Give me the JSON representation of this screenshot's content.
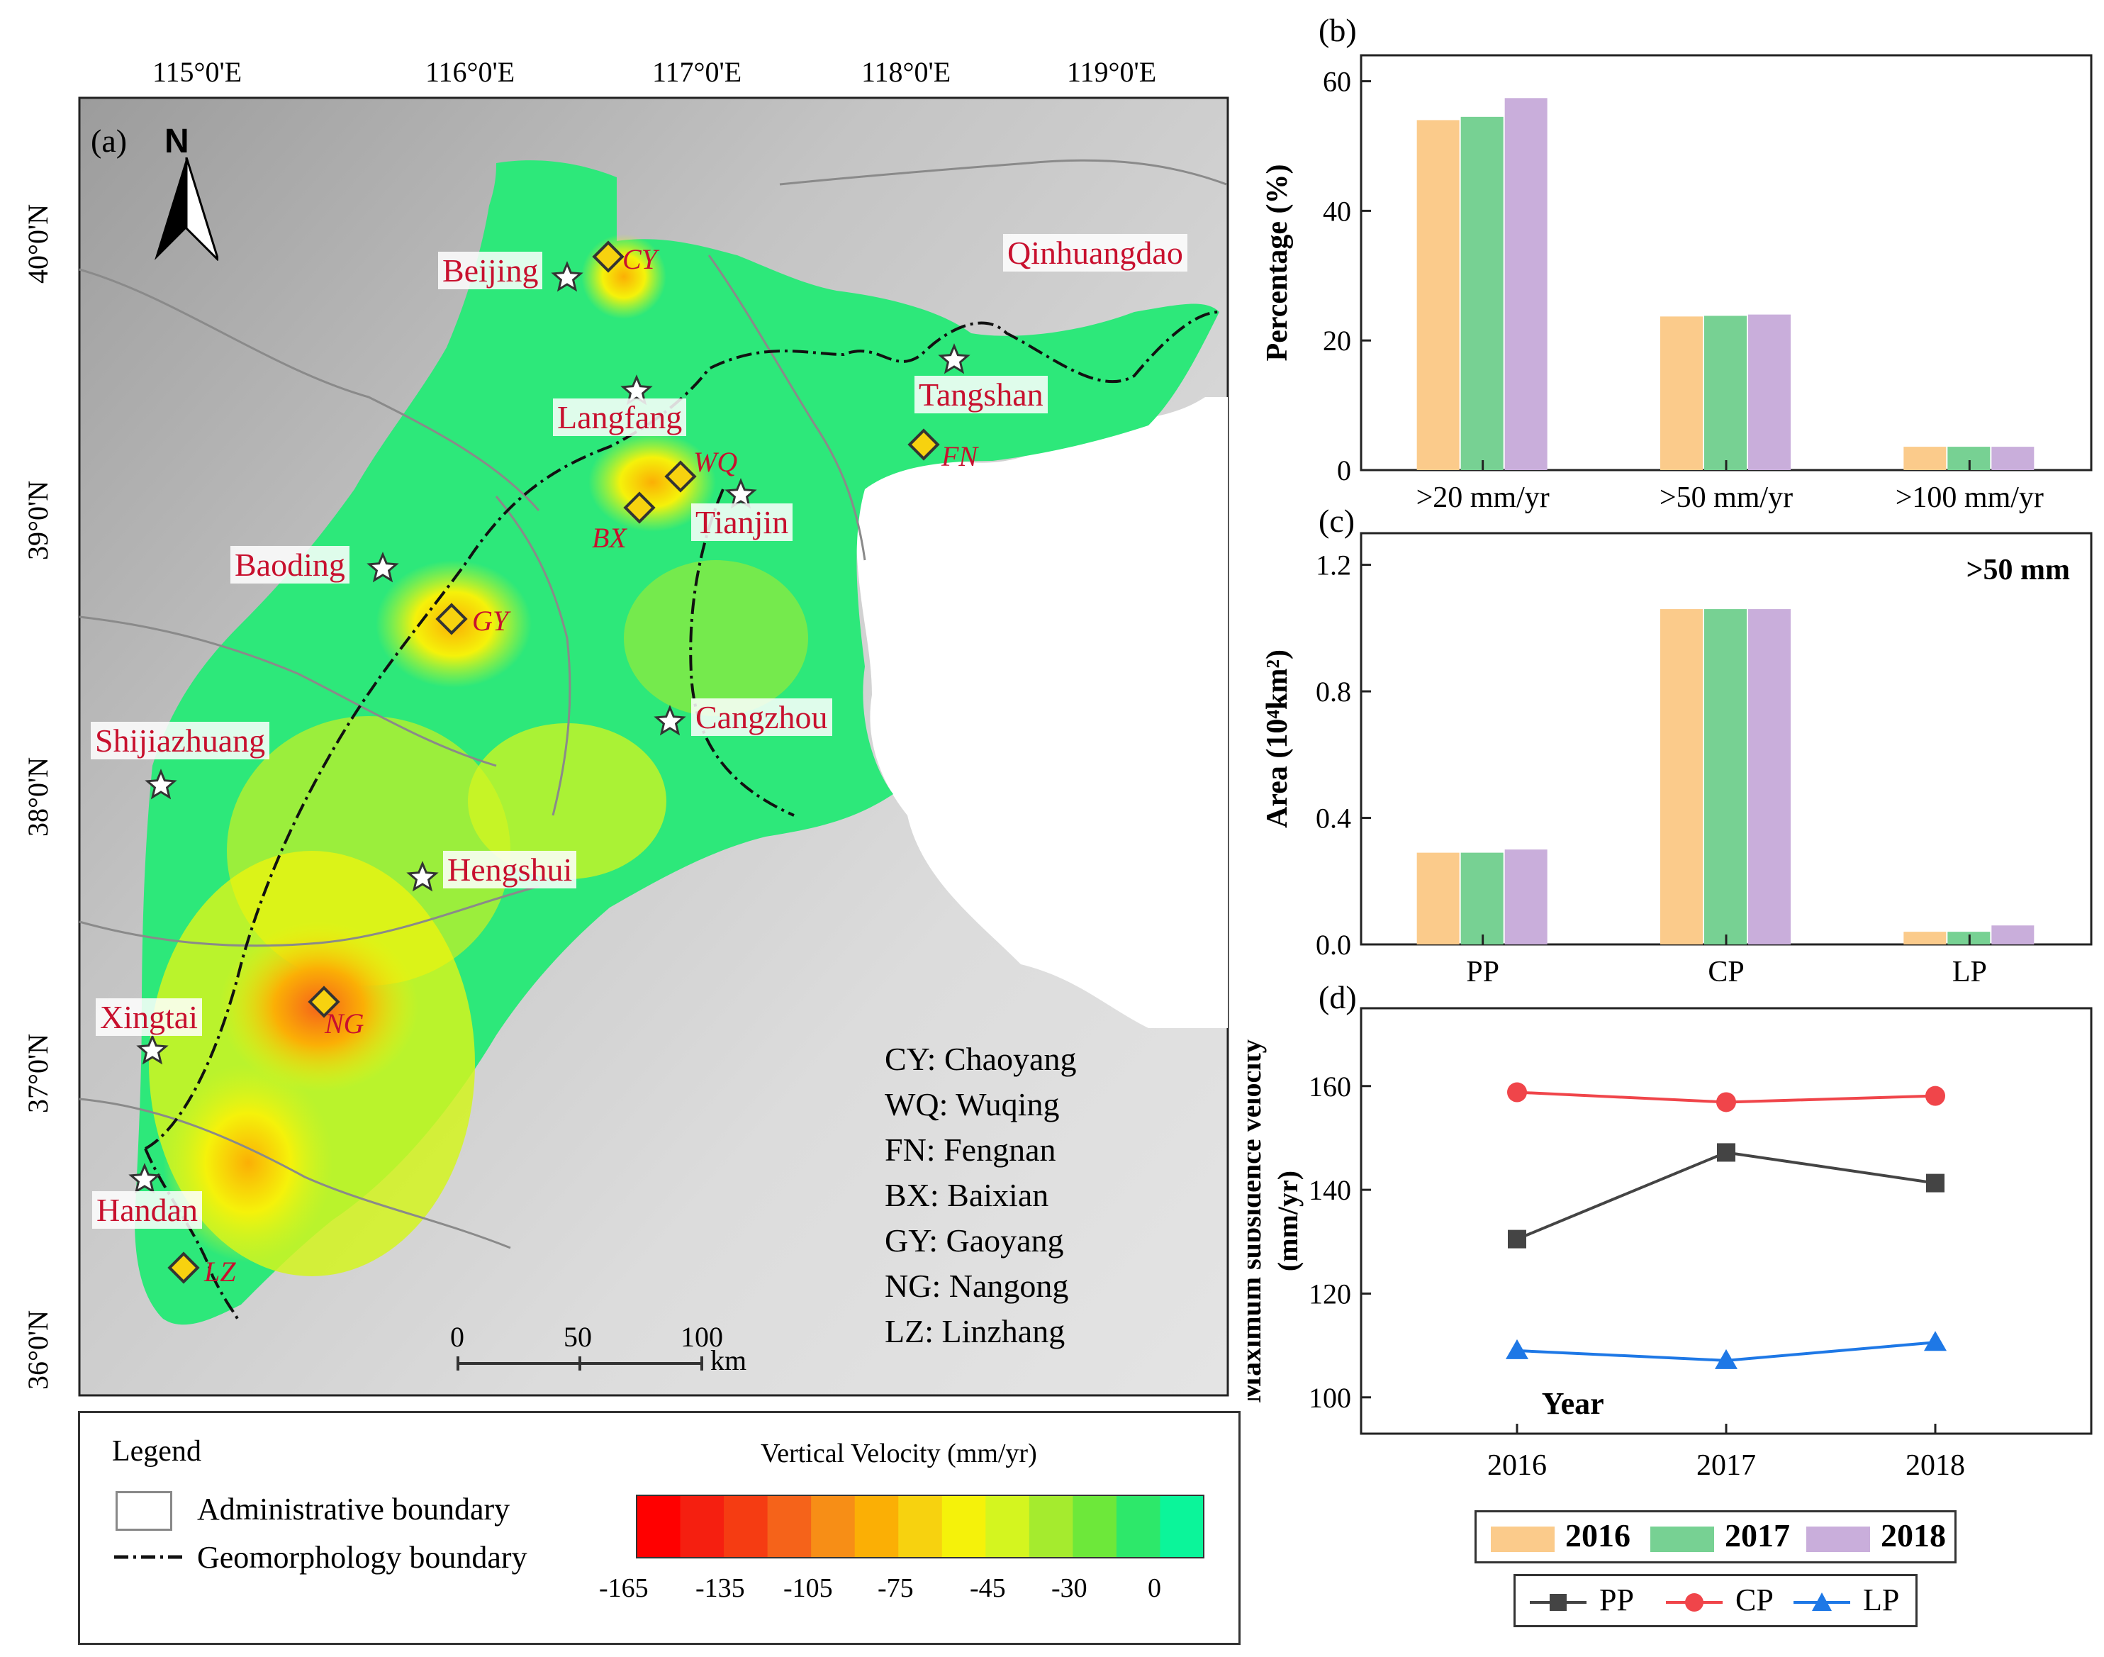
{
  "colors": {
    "c2016": "#FBCB8B",
    "c2017": "#77D193",
    "c2018": "#C9AEDB",
    "pp": "#444444",
    "cp": "#F0454A",
    "lp": "#1E78E6",
    "city": "#C8102E",
    "velocity_scale": [
      "#FF0000",
      "#F51F10",
      "#F53C12",
      "#F5631A",
      "#F78E16",
      "#FBAF05",
      "#F7D20F",
      "#F5F20A",
      "#D4F51F",
      "#A5EB2E",
      "#6DE83A",
      "#2DE86A",
      "#0BF59A"
    ]
  },
  "map": {
    "panel_label": "(a)",
    "north_label": "N",
    "lon_ticks": [
      "115°0'E",
      "116°0'E",
      "117°0'E",
      "118°0'E",
      "119°0'E"
    ],
    "lat_ticks": [
      "40°0'N",
      "39°0'N",
      "38°0'N",
      "37°0'N",
      "36°0'N"
    ],
    "cities": [
      "Beijing",
      "Qinhuangdao",
      "Tangshan",
      "Langfang",
      "Tianjin",
      "Baoding",
      "Cangzhou",
      "Shijiazhuang",
      "Hengshui",
      "Xingtai",
      "Handan"
    ],
    "sites": [
      "CY",
      "WQ",
      "FN",
      "BX",
      "GY",
      "NG",
      "LZ"
    ],
    "site_legend": [
      "CY: Chaoyang",
      "WQ: Wuqing",
      "FN: Fengnan",
      "BX: Baixian",
      "GY: Gaoyang",
      "NG: Nangong",
      "LZ: Linzhang"
    ],
    "scalebar_ticks": [
      "0",
      "50",
      "100"
    ],
    "scalebar_unit": "km"
  },
  "legend": {
    "title": "Legend",
    "admin_label": "Administrative boundary",
    "geo_label": "Geomorphology boundary",
    "colorbar_title": "Vertical Velocity (mm/yr)",
    "colorbar_ticks": [
      "-165",
      "-135",
      "-105",
      "-75",
      "-45",
      "-30",
      "0"
    ]
  },
  "chart_data": [
    {
      "panel": "(b)",
      "type": "bar",
      "categories": [
        ">20 mm/yr",
        ">50 mm/yr",
        ">100 mm/yr"
      ],
      "series": [
        {
          "name": "2016",
          "values": [
            54.0,
            23.7,
            3.6
          ]
        },
        {
          "name": "2017",
          "values": [
            54.5,
            23.8,
            3.6
          ]
        },
        {
          "name": "2018",
          "values": [
            57.4,
            24.0,
            3.6
          ]
        }
      ],
      "ylabel": "Percentage (%)",
      "ylim": [
        0,
        64
      ],
      "yticks": [
        0,
        20,
        40,
        60
      ]
    },
    {
      "panel": "(c)",
      "type": "bar",
      "annotation": ">50 mm",
      "categories": [
        "PP",
        "CP",
        "LP"
      ],
      "series": [
        {
          "name": "2016",
          "values": [
            0.29,
            1.06,
            0.04
          ]
        },
        {
          "name": "2017",
          "values": [
            0.29,
            1.06,
            0.04
          ]
        },
        {
          "name": "2018",
          "values": [
            0.3,
            1.06,
            0.06
          ]
        }
      ],
      "ylabel": "Area (10⁴km²)",
      "ylim": [
        0,
        1.3
      ],
      "yticks": [
        "0.0",
        "0.4",
        "0.8",
        "1.2"
      ]
    },
    {
      "panel": "(d)",
      "type": "line",
      "x": [
        2016,
        2017,
        2018
      ],
      "series": [
        {
          "name": "PP",
          "values": [
            130.5,
            147.2,
            141.3
          ]
        },
        {
          "name": "CP",
          "values": [
            158.8,
            156.9,
            158.1
          ]
        },
        {
          "name": "LP",
          "values": [
            109.0,
            107.1,
            110.6
          ]
        }
      ],
      "xlabel": "Year",
      "ylabel": "Maximum subsidence velocity (mm/yr)",
      "ylim": [
        93,
        175
      ],
      "yticks": [
        100,
        120,
        140,
        160
      ]
    }
  ],
  "bottom_legends": {
    "years": [
      "2016",
      "2017",
      "2018"
    ],
    "lines": [
      "PP",
      "CP",
      "LP"
    ]
  }
}
